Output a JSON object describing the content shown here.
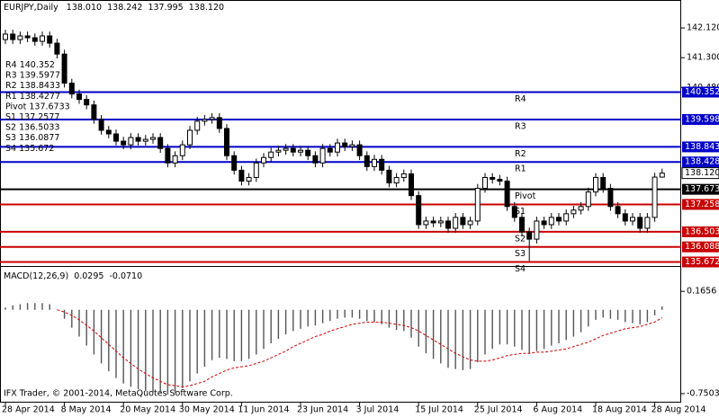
{
  "chart_data": [
    {
      "type": "candlestick",
      "symbol": "EURJPY,Daily",
      "header_ohlc_labels": [
        "138.010",
        "138.242",
        "137.995",
        "138.120"
      ],
      "open": [
        141.8,
        141.95,
        141.8,
        141.9,
        141.85,
        141.75,
        141.9,
        141.7,
        141.4,
        140.6,
        140.3,
        140.15,
        140.0,
        139.6,
        139.3,
        139.2,
        139.0,
        138.9,
        139.1,
        139.0,
        139.05,
        139.1,
        138.8,
        138.4,
        138.6,
        138.9,
        139.3,
        139.55,
        139.6,
        139.65,
        139.35,
        138.6,
        138.2,
        137.9,
        138.0,
        138.4,
        138.55,
        138.7,
        138.75,
        138.8,
        138.7,
        138.75,
        138.6,
        138.4,
        138.8,
        138.7,
        138.95,
        138.85,
        138.9,
        138.6,
        138.3,
        138.5,
        138.2,
        137.85,
        138.0,
        138.1,
        137.5,
        136.7,
        136.8,
        136.75,
        136.8,
        136.6,
        136.9,
        136.7,
        136.8,
        137.7,
        138.0,
        137.95,
        137.9,
        137.2,
        136.9,
        136.5,
        136.3,
        136.8,
        136.7,
        136.9,
        136.8,
        137.0,
        137.1,
        137.2,
        137.6,
        138.0,
        137.7,
        137.2,
        137.0,
        136.8,
        136.9,
        136.6,
        136.9,
        138.01
      ],
      "high": [
        142.07,
        142.07,
        142.02,
        142.02,
        141.97,
        142.02,
        142.02,
        141.82,
        141.52,
        140.72,
        140.42,
        140.27,
        140.12,
        139.72,
        139.42,
        139.32,
        139.12,
        139.22,
        139.22,
        139.17,
        139.22,
        139.22,
        138.92,
        138.72,
        139.02,
        139.42,
        139.67,
        139.72,
        139.77,
        139.77,
        139.47,
        138.72,
        138.32,
        138.12,
        138.52,
        138.67,
        138.82,
        138.87,
        138.92,
        138.92,
        138.87,
        138.87,
        138.72,
        138.92,
        138.92,
        139.07,
        139.07,
        139.02,
        139.02,
        138.72,
        138.62,
        138.62,
        138.32,
        138.12,
        138.22,
        138.22,
        137.62,
        136.92,
        136.92,
        136.92,
        136.92,
        137.02,
        137.02,
        136.92,
        137.82,
        138.12,
        138.12,
        138.07,
        138.02,
        137.32,
        137.02,
        136.62,
        136.92,
        136.92,
        137.02,
        137.02,
        137.12,
        137.22,
        137.32,
        137.72,
        138.12,
        138.12,
        137.82,
        137.32,
        137.12,
        137.02,
        137.02,
        137.02,
        138.13,
        138.242
      ],
      "low": [
        141.68,
        141.68,
        141.68,
        141.73,
        141.63,
        141.63,
        141.58,
        141.28,
        140.48,
        140.18,
        140.03,
        139.88,
        139.48,
        139.18,
        139.08,
        138.88,
        138.78,
        138.78,
        138.88,
        138.88,
        138.93,
        138.68,
        138.28,
        138.28,
        138.48,
        138.78,
        139.18,
        139.43,
        139.48,
        139.23,
        138.48,
        138.08,
        137.78,
        137.78,
        137.88,
        138.28,
        138.43,
        138.58,
        138.63,
        138.58,
        138.58,
        138.48,
        138.28,
        138.28,
        138.58,
        138.58,
        138.73,
        138.73,
        138.48,
        138.18,
        138.18,
        138.08,
        137.73,
        137.73,
        137.88,
        137.38,
        136.58,
        136.58,
        136.63,
        136.63,
        136.48,
        136.48,
        136.58,
        136.58,
        136.68,
        137.58,
        137.83,
        137.78,
        137.08,
        136.78,
        136.38,
        135.7,
        136.18,
        136.58,
        136.58,
        136.68,
        136.68,
        136.88,
        136.98,
        137.08,
        137.48,
        137.58,
        137.08,
        136.88,
        136.68,
        136.68,
        136.48,
        136.48,
        136.78,
        137.995
      ],
      "close": [
        141.95,
        141.8,
        141.9,
        141.85,
        141.75,
        141.9,
        141.7,
        141.4,
        140.6,
        140.3,
        140.15,
        140.0,
        139.6,
        139.3,
        139.2,
        139.0,
        138.9,
        139.1,
        139.0,
        139.05,
        139.1,
        138.8,
        138.4,
        138.6,
        138.9,
        139.3,
        139.55,
        139.6,
        139.65,
        139.35,
        138.6,
        138.2,
        137.9,
        138.0,
        138.4,
        138.55,
        138.7,
        138.75,
        138.8,
        138.7,
        138.75,
        138.6,
        138.4,
        138.8,
        138.7,
        138.95,
        138.85,
        138.9,
        138.6,
        138.3,
        138.5,
        138.2,
        137.85,
        138.0,
        138.1,
        137.5,
        136.7,
        136.8,
        136.75,
        136.8,
        136.6,
        136.9,
        136.7,
        136.8,
        137.7,
        138.0,
        137.95,
        137.9,
        137.2,
        136.9,
        136.5,
        136.3,
        136.8,
        136.7,
        136.9,
        136.8,
        137.0,
        137.1,
        137.2,
        137.6,
        138.0,
        137.7,
        137.2,
        137.0,
        136.8,
        136.9,
        136.6,
        136.9,
        138.01,
        138.12
      ],
      "ylim": [
        135.56,
        142.89
      ],
      "yticks": [
        {
          "value": 142.12,
          "label": "142.120"
        },
        {
          "value": 141.3,
          "label": "141.300"
        },
        {
          "value": 140.48,
          "label": "140.480"
        }
      ],
      "last_price": {
        "value": 138.12,
        "label": "138.120"
      },
      "pivots": [
        {
          "name": "R4",
          "value": 140.352,
          "axis_label": "140.352",
          "color": "#0000c8"
        },
        {
          "name": "R3",
          "value": 139.5977,
          "axis_label": "139.598",
          "color": "#0000c8"
        },
        {
          "name": "R2",
          "value": 138.8433,
          "axis_label": "138.843",
          "color": "#0000c8"
        },
        {
          "name": "R1",
          "value": 138.4277,
          "axis_label": "138.428",
          "color": "#0000c8"
        },
        {
          "name": "Pivot",
          "value": 137.6733,
          "axis_label": "137.673",
          "color": "#000000"
        },
        {
          "name": "S1",
          "value": 137.2577,
          "axis_label": "137.258",
          "color": "#c80000"
        },
        {
          "name": "S2",
          "value": 136.5033,
          "axis_label": "136.503",
          "color": "#c80000"
        },
        {
          "name": "S3",
          "value": 136.0877,
          "axis_label": "136.088",
          "color": "#c80000"
        },
        {
          "name": "S4",
          "value": 135.672,
          "axis_label": "135.672",
          "color": "#c80000"
        }
      ],
      "xticks": [
        {
          "value": 0,
          "label": "28 Apr 2014"
        },
        {
          "value": 8,
          "label": "8 May 2014"
        },
        {
          "value": 16,
          "label": "20 May 2014"
        },
        {
          "value": 24,
          "label": "30 May 2014"
        },
        {
          "value": 32,
          "label": "11 Jun 2014"
        },
        {
          "value": 40,
          "label": "23 Jun 2014"
        },
        {
          "value": 48,
          "label": "3 Jul 2014"
        },
        {
          "value": 56,
          "label": "15 Jul 2014"
        },
        {
          "value": 64,
          "label": "25 Jul 2014"
        },
        {
          "value": 72,
          "label": "6 Aug 2014"
        },
        {
          "value": 80,
          "label": "18 Aug 2014"
        },
        {
          "value": 88,
          "label": "28 Aug 2014"
        }
      ]
    },
    {
      "type": "macd",
      "title": "MACD(12,26,9)",
      "header_labels": [
        "0.0295",
        "-0.0710"
      ],
      "series": [
        {
          "name": "MACD",
          "color": "#555555",
          "values": [
            0.02,
            0.04,
            0.05,
            0.06,
            0.06,
            0.06,
            0.05,
            0.0,
            -0.08,
            -0.16,
            -0.24,
            -0.32,
            -0.4,
            -0.48,
            -0.55,
            -0.61,
            -0.66,
            -0.69,
            -0.71,
            -0.73,
            -0.74,
            -0.75,
            -0.76,
            -0.74,
            -0.7,
            -0.64,
            -0.57,
            -0.51,
            -0.45,
            -0.43,
            -0.44,
            -0.46,
            -0.46,
            -0.44,
            -0.4,
            -0.35,
            -0.3,
            -0.26,
            -0.22,
            -0.19,
            -0.17,
            -0.15,
            -0.14,
            -0.12,
            -0.1,
            -0.08,
            -0.07,
            -0.07,
            -0.08,
            -0.1,
            -0.11,
            -0.13,
            -0.16,
            -0.18,
            -0.19,
            -0.25,
            -0.33,
            -0.39,
            -0.44,
            -0.48,
            -0.52,
            -0.53,
            -0.54,
            -0.53,
            -0.47,
            -0.4,
            -0.35,
            -0.31,
            -0.31,
            -0.33,
            -0.36,
            -0.39,
            -0.37,
            -0.35,
            -0.32,
            -0.3,
            -0.27,
            -0.24,
            -0.2,
            -0.15,
            -0.09,
            -0.07,
            -0.08,
            -0.09,
            -0.11,
            -0.12,
            -0.13,
            -0.11,
            -0.05,
            0.03
          ]
        },
        {
          "name": "Signal",
          "color": "#d40000",
          "values": [
            null,
            null,
            null,
            null,
            null,
            null,
            null,
            0.0,
            -0.02,
            -0.05,
            -0.09,
            -0.14,
            -0.19,
            -0.25,
            -0.31,
            -0.37,
            -0.43,
            -0.48,
            -0.53,
            -0.57,
            -0.61,
            -0.64,
            -0.67,
            -0.68,
            -0.69,
            -0.68,
            -0.66,
            -0.64,
            -0.6,
            -0.57,
            -0.54,
            -0.52,
            -0.51,
            -0.5,
            -0.48,
            -0.46,
            -0.43,
            -0.4,
            -0.37,
            -0.33,
            -0.3,
            -0.27,
            -0.24,
            -0.22,
            -0.19,
            -0.17,
            -0.15,
            -0.13,
            -0.12,
            -0.11,
            -0.11,
            -0.11,
            -0.12,
            -0.13,
            -0.14,
            -0.16,
            -0.19,
            -0.23,
            -0.27,
            -0.31,
            -0.35,
            -0.39,
            -0.42,
            -0.45,
            -0.46,
            -0.46,
            -0.45,
            -0.43,
            -0.41,
            -0.4,
            -0.39,
            -0.39,
            -0.38,
            -0.38,
            -0.37,
            -0.36,
            -0.35,
            -0.33,
            -0.31,
            -0.29,
            -0.26,
            -0.23,
            -0.21,
            -0.19,
            -0.17,
            -0.16,
            -0.15,
            -0.13,
            -0.11,
            -0.07
          ]
        }
      ],
      "ylim": [
        -0.823,
        0.384
      ],
      "yticks": [
        0.1656,
        -0.7503
      ]
    }
  ],
  "footer": "IFX Trader, © 2001-2014, MetaQuotes Software Corp."
}
